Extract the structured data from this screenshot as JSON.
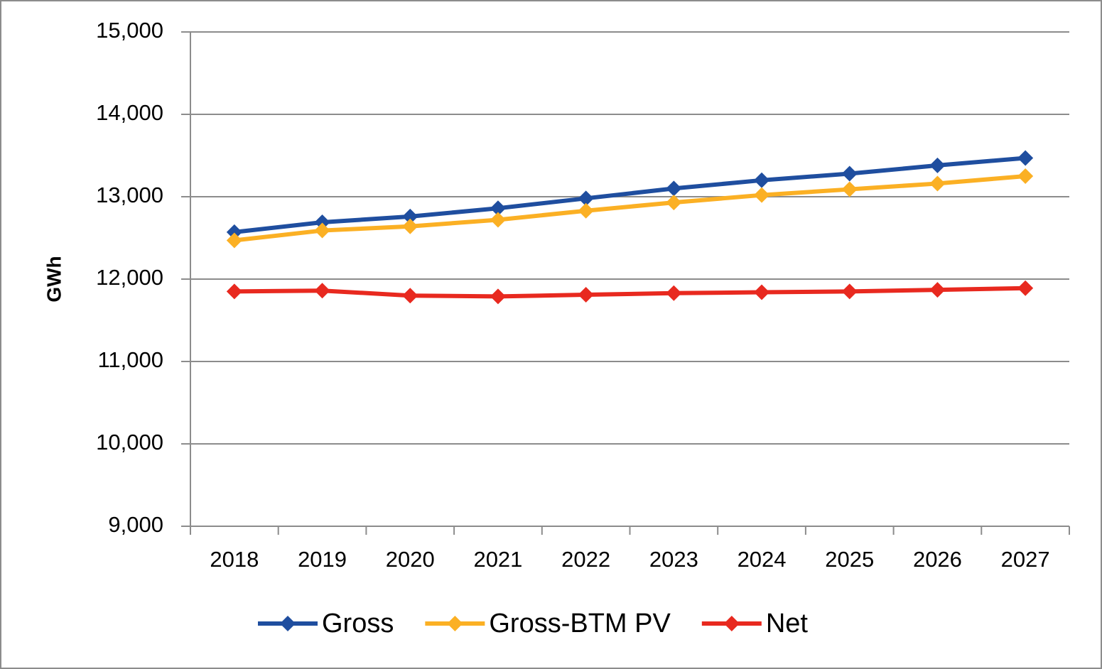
{
  "chart_data": {
    "type": "line",
    "y_label": "GWh",
    "categories": [
      "2018",
      "2019",
      "2020",
      "2021",
      "2022",
      "2023",
      "2024",
      "2025",
      "2026",
      "2027"
    ],
    "series": [
      {
        "name": "Gross",
        "color": "#1f4e9f",
        "values": [
          12570,
          12690,
          12760,
          12860,
          12980,
          13100,
          13200,
          13280,
          13380,
          13470
        ]
      },
      {
        "name": "Gross-BTM PV",
        "color": "#fbb024",
        "values": [
          12470,
          12590,
          12640,
          12720,
          12830,
          12930,
          13020,
          13090,
          13160,
          13250
        ]
      },
      {
        "name": "Net",
        "color": "#e8291f",
        "values": [
          11850,
          11860,
          11800,
          11790,
          11810,
          11830,
          11840,
          11850,
          11870,
          11890
        ]
      }
    ],
    "ylim": [
      9000,
      15000
    ],
    "yticks": [
      {
        "value": 9000,
        "label": "9,000"
      },
      {
        "value": 10000,
        "label": "10,000"
      },
      {
        "value": 11000,
        "label": "11,000"
      },
      {
        "value": 12000,
        "label": "12,000"
      },
      {
        "value": 13000,
        "label": "13,000"
      },
      {
        "value": 14000,
        "label": "14,000"
      },
      {
        "value": 15000,
        "label": "15,000"
      }
    ],
    "grid": true,
    "legend": "bottom"
  }
}
